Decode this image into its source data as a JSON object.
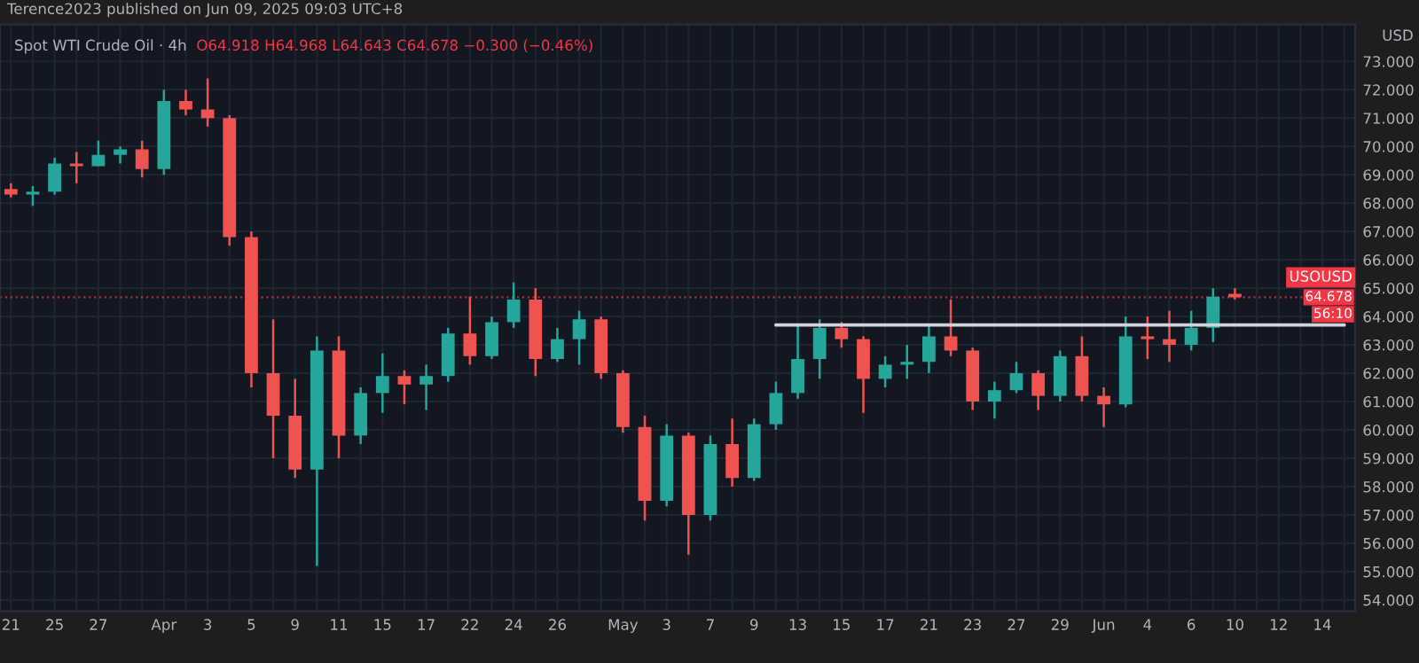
{
  "chart_data": {
    "type": "candlestick",
    "title": "Terence2023 published on Jun 09, 2025 09:03 UTC+8",
    "subtitle": "Spot WTI Crude Oil · 4h",
    "ylabel": "USD",
    "annotations": [
      "O64.918 H64.968 L64.643 C64.678 −0.300 (−0.46%)",
      {
        "text": "64.678",
        "y": 64.678
      },
      "56:10"
    ],
    "categories": [
      "21",
      null,
      "25",
      null,
      "27",
      null,
      null,
      "Apr",
      null,
      "3",
      null,
      "5",
      null,
      "9",
      null,
      "11",
      null,
      "15",
      null,
      "17",
      null,
      "22",
      null,
      "24",
      null,
      "26",
      null,
      null,
      "May",
      null,
      "3",
      null,
      "7",
      null,
      "9",
      null,
      "13",
      null,
      "15",
      null,
      "17",
      null,
      "21",
      null,
      "23",
      null,
      "27",
      null,
      "29",
      null,
      "Jun",
      null,
      "4",
      null,
      "6",
      null,
      "10",
      null,
      "12",
      null,
      "14",
      null
    ],
    "ohlc": [
      [
        68.5,
        68.7,
        68.2,
        68.3
      ],
      [
        68.3,
        68.6,
        67.9,
        68.4
      ],
      [
        68.4,
        69.6,
        68.3,
        69.4
      ],
      [
        69.4,
        69.8,
        68.7,
        69.3
      ],
      [
        69.3,
        70.2,
        69.3,
        69.7
      ],
      [
        69.7,
        70.0,
        69.4,
        69.9
      ],
      [
        69.9,
        70.2,
        68.9,
        69.2
      ],
      [
        69.2,
        72.0,
        69.0,
        71.6
      ],
      [
        71.6,
        72.0,
        71.1,
        71.3
      ],
      [
        71.3,
        72.4,
        70.7,
        71.0
      ],
      [
        71.0,
        71.1,
        66.5,
        66.8
      ],
      [
        66.8,
        67.0,
        61.5,
        62.0
      ],
      [
        62.0,
        63.9,
        59.0,
        60.5
      ],
      [
        60.5,
        61.8,
        58.3,
        58.6
      ],
      [
        58.6,
        63.3,
        55.2,
        62.8
      ],
      [
        62.8,
        63.3,
        59.0,
        59.8
      ],
      [
        59.8,
        61.5,
        59.5,
        61.3
      ],
      [
        61.3,
        62.7,
        60.6,
        61.9
      ],
      [
        61.9,
        62.1,
        60.9,
        61.6
      ],
      [
        61.6,
        62.3,
        60.7,
        61.9
      ],
      [
        61.9,
        63.6,
        61.7,
        63.4
      ],
      [
        63.4,
        64.7,
        62.3,
        62.6
      ],
      [
        62.6,
        64.0,
        62.5,
        63.8
      ],
      [
        63.8,
        65.2,
        63.6,
        64.6
      ],
      [
        64.6,
        65.0,
        61.9,
        62.5
      ],
      [
        62.5,
        63.6,
        62.4,
        63.2
      ],
      [
        63.2,
        64.2,
        62.3,
        63.9
      ],
      [
        63.9,
        64.0,
        61.8,
        62.0
      ],
      [
        62.0,
        62.1,
        59.9,
        60.1
      ],
      [
        60.1,
        60.5,
        56.8,
        57.5
      ],
      [
        57.5,
        60.2,
        57.3,
        59.8
      ],
      [
        59.8,
        59.9,
        55.6,
        57.0
      ],
      [
        57.0,
        59.8,
        56.8,
        59.5
      ],
      [
        59.5,
        60.4,
        58.0,
        58.3
      ],
      [
        58.3,
        60.4,
        58.2,
        60.2
      ],
      [
        60.2,
        61.7,
        60.0,
        61.3
      ],
      [
        61.3,
        63.7,
        61.1,
        62.5
      ],
      [
        62.5,
        63.9,
        61.8,
        63.6
      ],
      [
        63.6,
        63.8,
        62.9,
        63.2
      ],
      [
        63.2,
        63.3,
        60.6,
        61.8
      ],
      [
        61.8,
        62.6,
        61.5,
        62.3
      ],
      [
        62.3,
        63.0,
        61.8,
        62.4
      ],
      [
        62.4,
        63.7,
        62.0,
        63.3
      ],
      [
        63.3,
        64.6,
        62.6,
        62.8
      ],
      [
        62.8,
        62.9,
        60.7,
        61.0
      ],
      [
        61.0,
        61.7,
        60.4,
        61.4
      ],
      [
        61.4,
        62.4,
        61.3,
        62.0
      ],
      [
        62.0,
        62.1,
        60.7,
        61.2
      ],
      [
        61.2,
        62.8,
        61.0,
        62.6
      ],
      [
        62.6,
        63.3,
        61.0,
        61.2
      ],
      [
        61.2,
        61.5,
        60.1,
        60.9
      ],
      [
        60.9,
        64.0,
        60.8,
        63.3
      ],
      [
        63.3,
        64.0,
        62.5,
        63.2
      ],
      [
        63.2,
        64.2,
        62.4,
        63.0
      ],
      [
        63.0,
        64.2,
        62.8,
        63.6
      ],
      [
        63.6,
        65.0,
        63.1,
        64.7
      ],
      [
        64.8,
        65.0,
        64.6,
        64.678
      ],
      null,
      null,
      null,
      null,
      null
    ],
    "colors": [
      "#ef5350",
      "#26a69a",
      "#26a69a",
      "#ef5350",
      "#26a69a",
      "#26a69a",
      "#ef5350",
      "#26a69a",
      "#ef5350",
      "#ef5350",
      "#ef5350",
      "#ef5350",
      "#ef5350",
      "#ef5350",
      "#26a69a",
      "#ef5350",
      "#26a69a",
      "#26a69a",
      "#ef5350",
      "#26a69a",
      "#26a69a",
      "#ef5350",
      "#26a69a",
      "#26a69a",
      "#ef5350",
      "#26a69a",
      "#26a69a",
      "#ef5350",
      "#ef5350",
      "#ef5350",
      "#26a69a",
      "#ef5350",
      "#26a69a",
      "#ef5350",
      "#26a69a",
      "#26a69a",
      "#26a69a",
      "#26a69a",
      "#ef5350",
      "#ef5350",
      "#26a69a",
      "#26a69a",
      "#26a69a",
      "#ef5350",
      "#ef5350",
      "#26a69a",
      "#26a69a",
      "#ef5350",
      "#26a69a",
      "#ef5350",
      "#ef5350",
      "#26a69a",
      "#ef5350",
      "#ef5350",
      "#26a69a",
      "#26a69a",
      "#ef5350",
      null,
      null,
      null,
      null,
      null
    ],
    "series": [
      {
        "type": "line",
        "color": "#d1d4dc",
        "values": [
          null,
          null,
          null,
          null,
          null,
          null,
          null,
          null,
          null,
          null,
          null,
          null,
          null,
          null,
          null,
          null,
          null,
          null,
          null,
          null,
          null,
          null,
          null,
          null,
          null,
          null,
          null,
          null,
          null,
          null,
          null,
          null,
          null,
          null,
          null,
          63.7,
          63.7,
          63.7,
          63.7,
          63.7,
          63.7,
          63.7,
          63.7,
          63.7,
          63.7,
          63.7,
          63.7,
          63.7,
          63.7,
          63.7,
          63.7,
          63.7,
          63.7,
          63.7,
          63.7,
          63.7,
          63.7,
          63.7,
          63.7,
          63.7,
          63.7,
          63.7
        ]
      }
    ],
    "ref_lines": [
      {
        "axis": "y",
        "value": 64.678,
        "label": "USOUSD",
        "color": "#f23645",
        "line_style": "dotted"
      }
    ],
    "ylim": [
      53.6,
      74.3
    ],
    "yticks": [
      {
        "value": 54,
        "label": "54.000"
      },
      {
        "value": 55,
        "label": "55.000"
      },
      {
        "value": 56,
        "label": "56.000"
      },
      {
        "value": 57,
        "label": "57.000"
      },
      {
        "value": 58,
        "label": "58.000"
      },
      {
        "value": 59,
        "label": "59.000"
      },
      {
        "value": 60,
        "label": "60.000"
      },
      {
        "value": 61,
        "label": "61.000"
      },
      {
        "value": 62,
        "label": "62.000"
      },
      {
        "value": 63,
        "label": "63.000"
      },
      {
        "value": 64,
        "label": "64.000"
      },
      {
        "value": 65,
        "label": "65.000"
      },
      {
        "value": 66,
        "label": "66.000"
      },
      {
        "value": 67,
        "label": "67.000"
      },
      {
        "value": 68,
        "label": "68.000"
      },
      {
        "value": 69,
        "label": "69.000"
      },
      {
        "value": 70,
        "label": "70.000"
      },
      {
        "value": 71,
        "label": "71.000"
      },
      {
        "value": 72,
        "label": "72.000"
      },
      {
        "value": 73,
        "label": "73.000"
      }
    ],
    "grid": true,
    "legend": false
  }
}
